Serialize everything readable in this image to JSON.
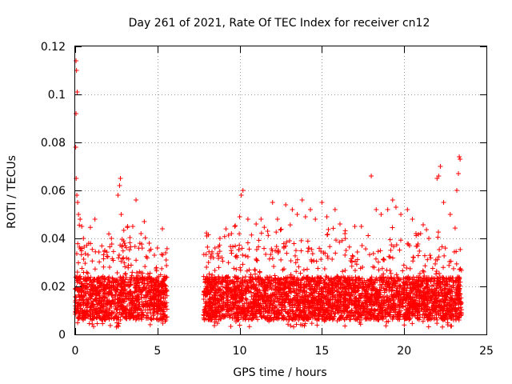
{
  "chart_data": {
    "type": "scatter",
    "title": "Day 261 of 2021, Rate Of TEC Index for receiver cn12",
    "xlabel": "GPS time / hours",
    "ylabel": "ROTI / TECUs",
    "xlim": [
      0,
      25
    ],
    "ylim": [
      0,
      0.12
    ],
    "xticks": [
      0,
      5,
      10,
      15,
      20,
      25
    ],
    "xtick_labels": [
      "0",
      "5",
      "10",
      "15",
      "20",
      "25"
    ],
    "yticks": [
      0,
      0.02,
      0.04,
      0.06,
      0.08,
      0.1,
      0.12
    ],
    "ytick_labels": [
      "0",
      "0.02",
      "0.04",
      "0.06",
      "0.08",
      "0.1",
      "0.12"
    ],
    "grid": true,
    "marker": "plus",
    "color": "#ff0000",
    "series": [
      {
        "name": "ROTI",
        "segments": [
          {
            "x_start": 0.0,
            "x_end": 5.6,
            "typical_range": [
              0.006,
              0.024
            ]
          },
          {
            "x_start": 7.8,
            "x_end": 23.5,
            "typical_range": [
              0.006,
              0.024
            ]
          }
        ],
        "points": [
          [
            0.05,
            0.114
          ],
          [
            0.08,
            0.11
          ],
          [
            0.12,
            0.101
          ],
          [
            0.05,
            0.092
          ],
          [
            0.03,
            0.078
          ],
          [
            0.06,
            0.065
          ],
          [
            0.1,
            0.058
          ],
          [
            0.15,
            0.055
          ],
          [
            0.2,
            0.05
          ],
          [
            0.3,
            0.048
          ],
          [
            0.4,
            0.045
          ],
          [
            0.5,
            0.04
          ],
          [
            1.2,
            0.048
          ],
          [
            1.8,
            0.035
          ],
          [
            2.2,
            0.04
          ],
          [
            2.6,
            0.058
          ],
          [
            2.7,
            0.062
          ],
          [
            2.75,
            0.065
          ],
          [
            2.8,
            0.05
          ],
          [
            3.0,
            0.038
          ],
          [
            3.5,
            0.045
          ],
          [
            3.7,
            0.056
          ],
          [
            4.0,
            0.042
          ],
          [
            4.2,
            0.047
          ],
          [
            4.5,
            0.038
          ],
          [
            5.0,
            0.036
          ],
          [
            5.3,
            0.044
          ],
          [
            5.5,
            0.034
          ],
          [
            8.0,
            0.041
          ],
          [
            8.5,
            0.036
          ],
          [
            8.8,
            0.04
          ],
          [
            9.5,
            0.042
          ],
          [
            9.7,
            0.045
          ],
          [
            10.0,
            0.049
          ],
          [
            10.1,
            0.058
          ],
          [
            10.2,
            0.06
          ],
          [
            10.5,
            0.048
          ],
          [
            11.0,
            0.046
          ],
          [
            11.3,
            0.048
          ],
          [
            11.7,
            0.043
          ],
          [
            12.0,
            0.055
          ],
          [
            12.3,
            0.048
          ],
          [
            12.8,
            0.054
          ],
          [
            13.2,
            0.052
          ],
          [
            13.5,
            0.05
          ],
          [
            13.8,
            0.056
          ],
          [
            14.0,
            0.049
          ],
          [
            14.3,
            0.052
          ],
          [
            14.6,
            0.048
          ],
          [
            15.0,
            0.055
          ],
          [
            15.3,
            0.049
          ],
          [
            15.8,
            0.052
          ],
          [
            16.1,
            0.046
          ],
          [
            16.4,
            0.042
          ],
          [
            17.0,
            0.045
          ],
          [
            17.4,
            0.045
          ],
          [
            18.0,
            0.066
          ],
          [
            18.3,
            0.052
          ],
          [
            18.6,
            0.05
          ],
          [
            19.0,
            0.052
          ],
          [
            19.3,
            0.056
          ],
          [
            19.5,
            0.053
          ],
          [
            19.8,
            0.05
          ],
          [
            20.2,
            0.052
          ],
          [
            20.5,
            0.048
          ],
          [
            21.0,
            0.042
          ],
          [
            21.5,
            0.04
          ],
          [
            22.0,
            0.065
          ],
          [
            22.1,
            0.066
          ],
          [
            22.2,
            0.07
          ],
          [
            22.4,
            0.055
          ],
          [
            22.8,
            0.05
          ],
          [
            23.2,
            0.06
          ],
          [
            23.3,
            0.067
          ],
          [
            23.35,
            0.074
          ],
          [
            23.4,
            0.073
          ]
        ]
      }
    ]
  }
}
